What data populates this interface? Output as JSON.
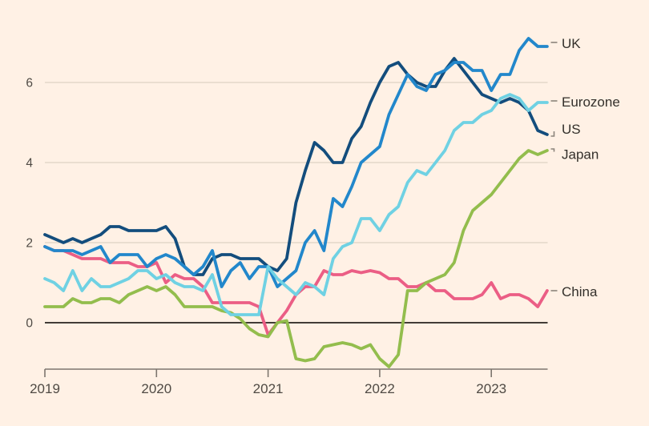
{
  "colors": {
    "background": "#fff1e5",
    "gridline": "#d5cabc",
    "zero_line": "#423d37",
    "axis_line": "#7d766e",
    "tick_text": "#4f4a44",
    "label_text": "#33302b",
    "leader_mark": "#8b847b"
  },
  "chart_data": {
    "type": "line",
    "grid": "horizontal",
    "legend_position": "right-end-labels",
    "x_axis": {
      "start_year": 2019,
      "frequency": "monthly",
      "tick_labels": [
        "2019",
        "2020",
        "2021",
        "2022",
        "2023"
      ]
    },
    "y_axis": {
      "tick_labels": [
        "0",
        "2",
        "4",
        "6"
      ],
      "tick_values": [
        0,
        2,
        4,
        6
      ],
      "ylim": [
        -1.35,
        7.45
      ]
    },
    "xlim": [
      2019.0,
      2023.5
    ],
    "draw_order": [
      "China",
      "Japan",
      "US",
      "UK",
      "Eurozone"
    ],
    "series": [
      {
        "name": "UK",
        "label": "UK",
        "color": "#2287cb",
        "values": [
          1.9,
          1.8,
          1.8,
          1.8,
          1.7,
          1.8,
          1.9,
          1.5,
          1.7,
          1.7,
          1.7,
          1.4,
          1.6,
          1.7,
          1.6,
          1.4,
          1.2,
          1.4,
          1.8,
          0.9,
          1.3,
          1.5,
          1.1,
          1.4,
          1.4,
          0.9,
          1.1,
          1.3,
          2.0,
          2.3,
          1.8,
          3.1,
          2.9,
          3.4,
          4.0,
          4.2,
          4.4,
          5.2,
          5.7,
          6.2,
          5.9,
          5.8,
          6.2,
          6.3,
          6.5,
          6.5,
          6.3,
          6.3,
          5.8,
          6.2,
          6.2,
          6.8,
          7.1,
          6.9,
          6.9
        ]
      },
      {
        "name": "Eurozone",
        "label": "Eurozone",
        "color": "#6fd1e3",
        "values": [
          1.1,
          1.0,
          0.8,
          1.3,
          0.8,
          1.1,
          0.9,
          0.9,
          1.0,
          1.1,
          1.3,
          1.3,
          1.1,
          1.2,
          1.0,
          0.9,
          0.9,
          0.8,
          1.2,
          0.4,
          0.2,
          0.2,
          0.2,
          0.2,
          1.4,
          1.1,
          0.9,
          0.7,
          1.0,
          0.9,
          0.7,
          1.6,
          1.9,
          2.0,
          2.6,
          2.6,
          2.3,
          2.7,
          2.9,
          3.5,
          3.8,
          3.7,
          4.0,
          4.3,
          4.8,
          5.0,
          5.0,
          5.2,
          5.3,
          5.6,
          5.7,
          5.6,
          5.3,
          5.5,
          5.5
        ]
      },
      {
        "name": "US",
        "label": "US",
        "color": "#134d7d",
        "values": [
          2.2,
          2.1,
          2.0,
          2.1,
          2.0,
          2.1,
          2.2,
          2.4,
          2.4,
          2.3,
          2.3,
          2.3,
          2.3,
          2.4,
          2.1,
          1.4,
          1.2,
          1.2,
          1.6,
          1.7,
          1.7,
          1.6,
          1.6,
          1.6,
          1.4,
          1.3,
          1.6,
          3.0,
          3.8,
          4.5,
          4.3,
          4.0,
          4.0,
          4.6,
          4.9,
          5.5,
          6.0,
          6.4,
          6.5,
          6.2,
          6.0,
          5.9,
          5.9,
          6.3,
          6.6,
          6.3,
          6.0,
          5.7,
          5.6,
          5.5,
          5.6,
          5.5,
          5.3,
          4.8,
          4.7
        ]
      },
      {
        "name": "Japan",
        "label": "Japan",
        "color": "#93bd4d",
        "values": [
          0.4,
          0.4,
          0.4,
          0.6,
          0.5,
          0.5,
          0.6,
          0.6,
          0.5,
          0.7,
          0.8,
          0.9,
          0.8,
          0.9,
          0.7,
          0.4,
          0.4,
          0.4,
          0.4,
          0.3,
          0.25,
          0.1,
          -0.15,
          -0.3,
          -0.35,
          0.0,
          0.05,
          -0.9,
          -0.95,
          -0.9,
          -0.6,
          -0.55,
          -0.5,
          -0.55,
          -0.65,
          -0.55,
          -0.9,
          -1.1,
          -0.8,
          0.8,
          0.8,
          1.0,
          1.1,
          1.2,
          1.5,
          2.3,
          2.8,
          3.0,
          3.2,
          3.5,
          3.8,
          4.1,
          4.3,
          4.2,
          4.3
        ]
      },
      {
        "name": "China",
        "label": "China",
        "color": "#eb5e85",
        "values": [
          1.9,
          1.8,
          1.8,
          1.7,
          1.6,
          1.6,
          1.6,
          1.5,
          1.5,
          1.5,
          1.4,
          1.4,
          1.5,
          1.0,
          1.2,
          1.1,
          1.1,
          0.9,
          0.5,
          0.5,
          0.5,
          0.5,
          0.5,
          0.4,
          -0.3,
          0.0,
          0.3,
          0.7,
          0.9,
          0.9,
          1.3,
          1.2,
          1.2,
          1.3,
          1.25,
          1.3,
          1.25,
          1.1,
          1.1,
          0.9,
          0.9,
          1.0,
          0.8,
          0.8,
          0.6,
          0.6,
          0.6,
          0.7,
          1.0,
          0.6,
          0.7,
          0.7,
          0.6,
          0.4,
          0.8
        ]
      }
    ]
  }
}
